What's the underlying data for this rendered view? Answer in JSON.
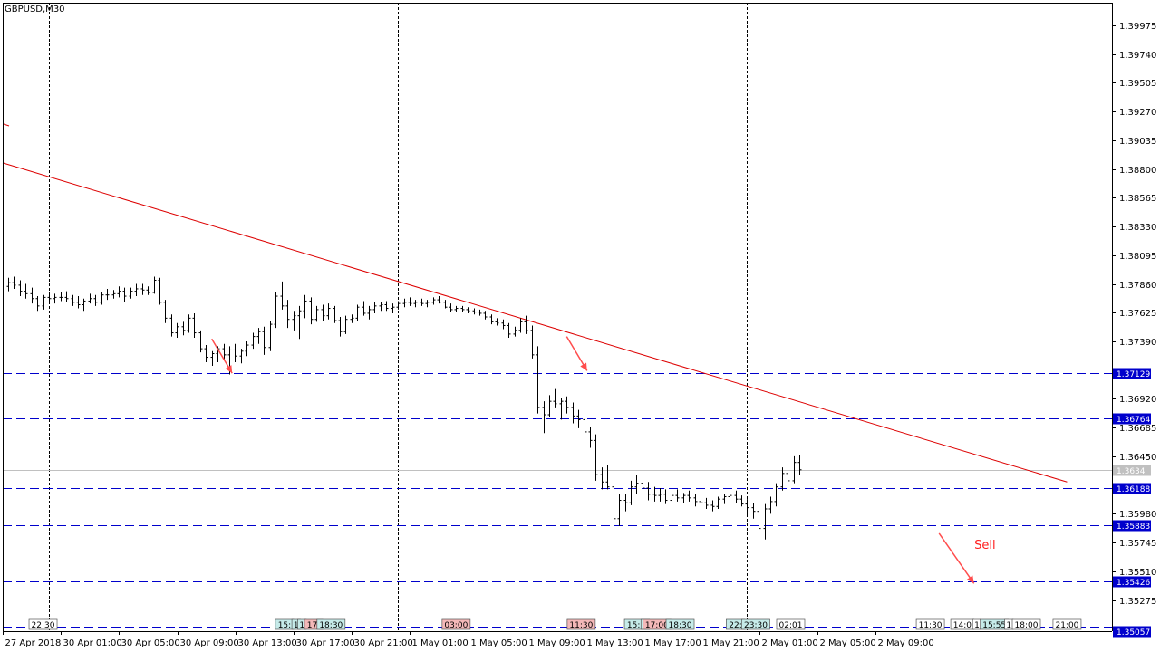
{
  "chart_data": {
    "type": "ohlc",
    "title": "GBPUSD,M30",
    "symbol": "GBPUSD",
    "timeframe": "M30",
    "colors": {
      "background": "#ffffff",
      "bars": "#000000",
      "trendline": "#dd0000",
      "levels": "#0000cc",
      "level_label_bg": "#0000cc",
      "current_price_line": "#c0c0c0",
      "arrows": "#ff4d4d",
      "sell_text": "#ff2020"
    },
    "ylim": [
      1.3502,
      1.4016
    ],
    "y_ticks": [
      "1.39975",
      "1.39740",
      "1.39505",
      "1.39270",
      "1.39035",
      "1.38800",
      "1.38565",
      "1.38330",
      "1.38095",
      "1.37860",
      "1.37625",
      "1.37390",
      "1.36920",
      "1.36685",
      "1.36450",
      "1.35980",
      "1.35745",
      "1.35510",
      "1.35275"
    ],
    "x_ticks": [
      "27 Apr 2018",
      "30 Apr 01:00",
      "30 Apr 05:00",
      "30 Apr 09:00",
      "30 Apr 13:00",
      "30 Apr 17:00",
      "30 Apr 21:00",
      "1 May 01:00",
      "1 May 05:00",
      "1 May 09:00",
      "1 May 13:00",
      "1 May 17:00",
      "1 May 21:00",
      "2 May 01:00",
      "2 May 05:00",
      "2 May 09:00"
    ],
    "x_range": [
      0,
      176
    ],
    "vertical_grid_bars": [
      7,
      67,
      127,
      187
    ],
    "current_price": {
      "label": "1.3634",
      "value": 1.3634
    },
    "levels": [
      {
        "label": "1.37129",
        "value": 1.37129
      },
      {
        "label": "1.36764",
        "value": 1.36764
      },
      {
        "label": "1.36188",
        "value": 1.36188
      },
      {
        "label": "1.35883",
        "value": 1.35883
      },
      {
        "label": "1.35426",
        "value": 1.35426
      },
      {
        "label": "1.35057",
        "value": 1.35057
      }
    ],
    "trendline": {
      "from": [
        0,
        1.3885
      ],
      "to": [
        182,
        1.3624
      ]
    },
    "arrows": [
      {
        "from": [
          35,
          1.3741
        ],
        "to": [
          38.5,
          1.3713
        ]
      },
      {
        "from": [
          96,
          1.3743
        ],
        "to": [
          99.5,
          1.3715
        ]
      },
      {
        "from": [
          160,
          1.3582
        ],
        "to": [
          166,
          1.3541
        ]
      }
    ],
    "annotation": {
      "text": "Sell",
      "x": 167,
      "value": 1.3573
    },
    "event_tags": [
      {
        "text": "22:30",
        "x": 6,
        "color": "#ffffff"
      },
      {
        "text": "15:",
        "x": 47.5,
        "color": "#c6ebe9"
      },
      {
        "text": "1",
        "x": 49.5,
        "color": "#c6ebe9"
      },
      {
        "text": "1",
        "x": 50.5,
        "color": "#c6ebe9"
      },
      {
        "text": "17:",
        "x": 52.5,
        "color": "#f4b8b8"
      },
      {
        "text": "18:30",
        "x": 55.5,
        "color": "#c6ebe9"
      },
      {
        "text": "03:00",
        "x": 77,
        "color": "#f4b8b8"
      },
      {
        "text": "11:30",
        "x": 98.5,
        "color": "#f4b8b8"
      },
      {
        "text": "15:",
        "x": 107.5,
        "color": "#c6ebe9"
      },
      {
        "text": "1",
        "x": 109.5,
        "color": "#c6ebe9"
      },
      {
        "text": "17:00",
        "x": 111.5,
        "color": "#f4b8b8"
      },
      {
        "text": "18:30",
        "x": 115.5,
        "color": "#c6ebe9"
      },
      {
        "text": "22:",
        "x": 125,
        "color": "#c6ebe9"
      },
      {
        "text": "23:30",
        "x": 128.5,
        "color": "#c6ebe9"
      },
      {
        "text": "02:01",
        "x": 134.5,
        "color": "#ffffff"
      },
      {
        "text": "11:30",
        "x": 158.5,
        "color": "#ffffff"
      },
      {
        "text": "14:0",
        "x": 164,
        "color": "#ffffff"
      },
      {
        "text": "1",
        "x": 166.5,
        "color": "#ffffff"
      },
      {
        "text": "15:55",
        "x": 169.5,
        "color": "#c6ebe9"
      },
      {
        "text": "1",
        "x": 172,
        "color": "#ffffff"
      },
      {
        "text": "18:00",
        "x": 175,
        "color": "#ffffff"
      },
      {
        "text": "21:00",
        "x": 182,
        "color": "#ffffff"
      }
    ],
    "ohlc": [
      [
        1.3784,
        1.3791,
        1.378,
        1.3787
      ],
      [
        1.3787,
        1.3792,
        1.3782,
        1.3785
      ],
      [
        1.3785,
        1.3789,
        1.3776,
        1.378
      ],
      [
        1.378,
        1.3786,
        1.3774,
        1.3778
      ],
      [
        1.3778,
        1.3783,
        1.377,
        1.3774
      ],
      [
        1.3774,
        1.3776,
        1.3764,
        1.3768
      ],
      [
        1.3768,
        1.3777,
        1.3765,
        1.3775
      ],
      [
        1.3775,
        1.3779,
        1.3771,
        1.3774
      ],
      [
        1.3774,
        1.3778,
        1.377,
        1.3775
      ],
      [
        1.3775,
        1.3779,
        1.3772,
        1.3775
      ],
      [
        1.3775,
        1.378,
        1.3771,
        1.3774
      ],
      [
        1.3774,
        1.3777,
        1.3768,
        1.3771
      ],
      [
        1.3771,
        1.3776,
        1.3766,
        1.3769
      ],
      [
        1.3769,
        1.3774,
        1.3764,
        1.3772
      ],
      [
        1.3772,
        1.3778,
        1.377,
        1.3774
      ],
      [
        1.3774,
        1.3777,
        1.3768,
        1.3771
      ],
      [
        1.3771,
        1.3779,
        1.3769,
        1.3777
      ],
      [
        1.3777,
        1.3782,
        1.3773,
        1.3777
      ],
      [
        1.3777,
        1.3781,
        1.3774,
        1.3778
      ],
      [
        1.3778,
        1.3784,
        1.3775,
        1.378
      ],
      [
        1.378,
        1.3783,
        1.3771,
        1.3776
      ],
      [
        1.3776,
        1.3783,
        1.3774,
        1.378
      ],
      [
        1.378,
        1.3786,
        1.3776,
        1.3782
      ],
      [
        1.3782,
        1.3786,
        1.3777,
        1.3781
      ],
      [
        1.3781,
        1.3784,
        1.3777,
        1.3779
      ],
      [
        1.3779,
        1.3792,
        1.3778,
        1.3789
      ],
      [
        1.3789,
        1.3791,
        1.3769,
        1.3771
      ],
      [
        1.3771,
        1.3773,
        1.3754,
        1.3758
      ],
      [
        1.3758,
        1.3761,
        1.3743,
        1.3746
      ],
      [
        1.3746,
        1.3754,
        1.3742,
        1.3751
      ],
      [
        1.3751,
        1.3755,
        1.3744,
        1.3748
      ],
      [
        1.3748,
        1.3761,
        1.3746,
        1.3758
      ],
      [
        1.3758,
        1.3762,
        1.3742,
        1.3746
      ],
      [
        1.3746,
        1.3748,
        1.373,
        1.3733
      ],
      [
        1.3733,
        1.3736,
        1.3722,
        1.3726
      ],
      [
        1.3726,
        1.3731,
        1.3719,
        1.3729
      ],
      [
        1.3729,
        1.3735,
        1.3722,
        1.3733
      ],
      [
        1.3733,
        1.3737,
        1.3724,
        1.3728
      ],
      [
        1.3728,
        1.3735,
        1.3712,
        1.3732
      ],
      [
        1.3732,
        1.3737,
        1.3722,
        1.3727
      ],
      [
        1.3727,
        1.3733,
        1.3721,
        1.3731
      ],
      [
        1.3731,
        1.3739,
        1.3727,
        1.3736
      ],
      [
        1.3736,
        1.3746,
        1.3733,
        1.3743
      ],
      [
        1.3743,
        1.375,
        1.3737,
        1.3747
      ],
      [
        1.3747,
        1.3751,
        1.3728,
        1.3734
      ],
      [
        1.3734,
        1.3756,
        1.3731,
        1.3753
      ],
      [
        1.3753,
        1.3779,
        1.375,
        1.3776
      ],
      [
        1.3776,
        1.3788,
        1.3765,
        1.3768
      ],
      [
        1.3768,
        1.3773,
        1.375,
        1.3757
      ],
      [
        1.3757,
        1.3764,
        1.3748,
        1.376
      ],
      [
        1.376,
        1.3768,
        1.3741,
        1.3764
      ],
      [
        1.3764,
        1.3777,
        1.3758,
        1.3772
      ],
      [
        1.3772,
        1.3775,
        1.3753,
        1.3757
      ],
      [
        1.3757,
        1.3768,
        1.3755,
        1.3765
      ],
      [
        1.3765,
        1.3769,
        1.3756,
        1.376
      ],
      [
        1.376,
        1.377,
        1.3757,
        1.3766
      ],
      [
        1.3766,
        1.3768,
        1.3754,
        1.3756
      ],
      [
        1.3756,
        1.3759,
        1.3743,
        1.3747
      ],
      [
        1.3747,
        1.376,
        1.3745,
        1.3757
      ],
      [
        1.3757,
        1.3761,
        1.3754,
        1.3758
      ],
      [
        1.3758,
        1.3769,
        1.3756,
        1.3767
      ],
      [
        1.3767,
        1.3772,
        1.376,
        1.3762
      ],
      [
        1.3762,
        1.3768,
        1.3757,
        1.3765
      ],
      [
        1.3765,
        1.3771,
        1.3762,
        1.3768
      ],
      [
        1.3768,
        1.3771,
        1.3764,
        1.3769
      ],
      [
        1.3769,
        1.3772,
        1.3764,
        1.3766
      ],
      [
        1.3766,
        1.377,
        1.3762,
        1.3767
      ],
      [
        1.3767,
        1.3772,
        1.3765,
        1.377
      ],
      [
        1.377,
        1.3774,
        1.3767,
        1.3771
      ],
      [
        1.3771,
        1.3775,
        1.3768,
        1.377
      ],
      [
        1.377,
        1.3773,
        1.3767,
        1.3771
      ],
      [
        1.3771,
        1.3774,
        1.3768,
        1.377
      ],
      [
        1.377,
        1.3773,
        1.3767,
        1.3771
      ],
      [
        1.3771,
        1.3775,
        1.3769,
        1.3773
      ],
      [
        1.3773,
        1.3776,
        1.377,
        1.3771
      ],
      [
        1.3771,
        1.3773,
        1.3766,
        1.3767
      ],
      [
        1.3767,
        1.377,
        1.3763,
        1.3765
      ],
      [
        1.3765,
        1.3768,
        1.3763,
        1.3766
      ],
      [
        1.3766,
        1.3768,
        1.3763,
        1.3765
      ],
      [
        1.3765,
        1.3767,
        1.3762,
        1.3764
      ],
      [
        1.3764,
        1.3766,
        1.3761,
        1.3763
      ],
      [
        1.3763,
        1.3765,
        1.376,
        1.3762
      ],
      [
        1.3762,
        1.3764,
        1.3757,
        1.3759
      ],
      [
        1.3759,
        1.3761,
        1.3753,
        1.3755
      ],
      [
        1.3755,
        1.3758,
        1.3752,
        1.3754
      ],
      [
        1.3754,
        1.3757,
        1.3749,
        1.3752
      ],
      [
        1.3752,
        1.3754,
        1.3742,
        1.3745
      ],
      [
        1.3745,
        1.3751,
        1.3743,
        1.3748
      ],
      [
        1.3748,
        1.3758,
        1.3746,
        1.3755
      ],
      [
        1.3755,
        1.376,
        1.3745,
        1.3748
      ],
      [
        1.3748,
        1.3752,
        1.3725,
        1.3728
      ],
      [
        1.3728,
        1.3735,
        1.368,
        1.3685
      ],
      [
        1.3685,
        1.369,
        1.3664,
        1.3679
      ],
      [
        1.3679,
        1.3695,
        1.3677,
        1.369
      ],
      [
        1.369,
        1.37,
        1.3685,
        1.3688
      ],
      [
        1.3688,
        1.3693,
        1.3675,
        1.369
      ],
      [
        1.369,
        1.3694,
        1.368,
        1.3685
      ],
      [
        1.3685,
        1.3689,
        1.3672,
        1.3678
      ],
      [
        1.3678,
        1.3683,
        1.3668,
        1.3675
      ],
      [
        1.3675,
        1.368,
        1.366,
        1.3665
      ],
      [
        1.3665,
        1.3669,
        1.3652,
        1.3658
      ],
      [
        1.3658,
        1.3663,
        1.3625,
        1.363
      ],
      [
        1.363,
        1.3636,
        1.3618,
        1.3624
      ],
      [
        1.3624,
        1.3638,
        1.3618,
        1.362
      ],
      [
        1.362,
        1.3623,
        1.3587,
        1.3594
      ],
      [
        1.3594,
        1.3614,
        1.3588,
        1.3609
      ],
      [
        1.3609,
        1.3614,
        1.36,
        1.3607
      ],
      [
        1.3607,
        1.3625,
        1.3605,
        1.362
      ],
      [
        1.362,
        1.363,
        1.3614,
        1.3623
      ],
      [
        1.3623,
        1.3628,
        1.3614,
        1.3619
      ],
      [
        1.3619,
        1.3624,
        1.3609,
        1.3614
      ],
      [
        1.3614,
        1.362,
        1.3608,
        1.3613
      ],
      [
        1.3613,
        1.3619,
        1.3608,
        1.3614
      ],
      [
        1.3614,
        1.3618,
        1.3606,
        1.3609
      ],
      [
        1.3609,
        1.3616,
        1.3605,
        1.3613
      ],
      [
        1.3613,
        1.3618,
        1.3608,
        1.3611
      ],
      [
        1.3611,
        1.3615,
        1.3607,
        1.3613
      ],
      [
        1.3613,
        1.3617,
        1.3608,
        1.3611
      ],
      [
        1.3611,
        1.3614,
        1.3604,
        1.3608
      ],
      [
        1.3608,
        1.3612,
        1.3603,
        1.3607
      ],
      [
        1.3607,
        1.3611,
        1.3602,
        1.3605
      ],
      [
        1.3605,
        1.3609,
        1.36,
        1.3604
      ],
      [
        1.3604,
        1.3612,
        1.3602,
        1.361
      ],
      [
        1.361,
        1.3614,
        1.3606,
        1.3612
      ],
      [
        1.3612,
        1.3616,
        1.3608,
        1.3613
      ],
      [
        1.3613,
        1.3617,
        1.3607,
        1.361
      ],
      [
        1.361,
        1.3613,
        1.3604,
        1.3606
      ],
      [
        1.3606,
        1.361,
        1.3597,
        1.3603
      ],
      [
        1.3603,
        1.3607,
        1.3594,
        1.36
      ],
      [
        1.36,
        1.3606,
        1.3582,
        1.3586
      ],
      [
        1.3586,
        1.3606,
        1.3577,
        1.3602
      ],
      [
        1.3602,
        1.3612,
        1.3598,
        1.3608
      ],
      [
        1.3608,
        1.3623,
        1.3604,
        1.362
      ],
      [
        1.362,
        1.3636,
        1.3617,
        1.3631
      ],
      [
        1.3631,
        1.3645,
        1.3622,
        1.3625
      ],
      [
        1.3625,
        1.3645,
        1.3623,
        1.364
      ],
      [
        1.364,
        1.3646,
        1.363,
        1.3634
      ]
    ]
  }
}
